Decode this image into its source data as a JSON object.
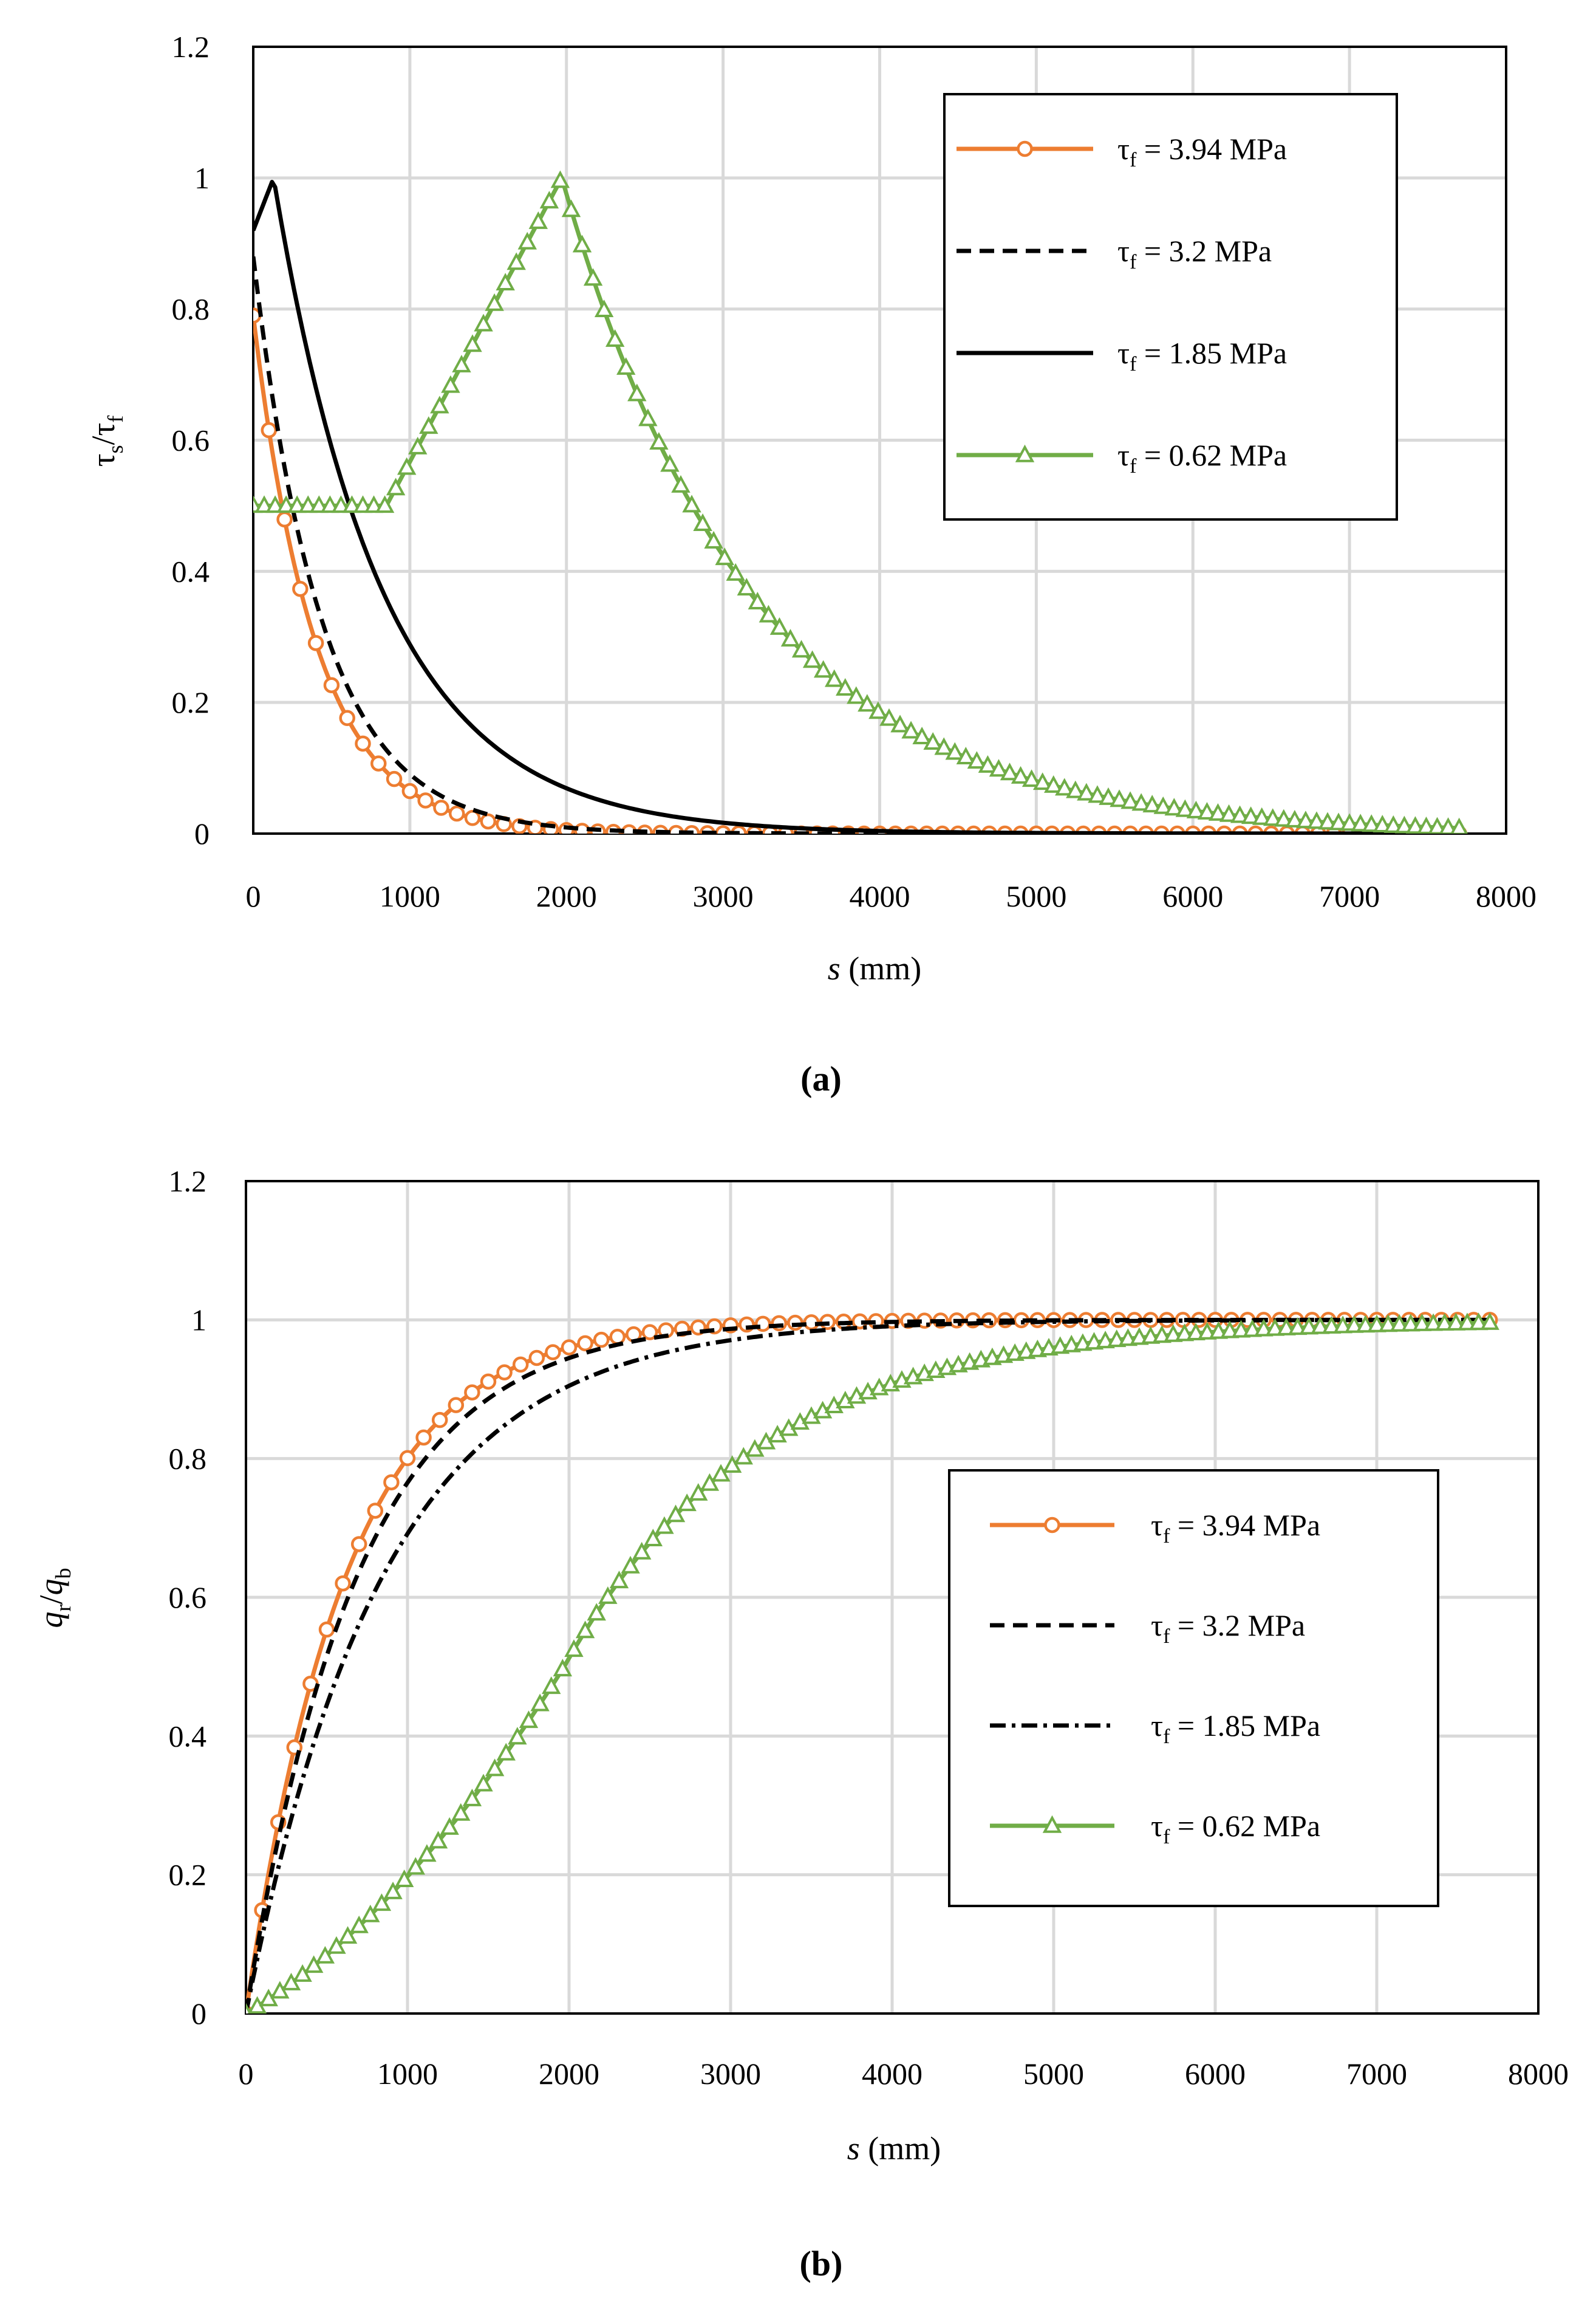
{
  "colors": {
    "orange": "#ed7d31",
    "green": "#70ad47",
    "black": "#000000",
    "grid": "#d9d9d9"
  },
  "chart_data": [
    {
      "type": "line",
      "caption": "(a)",
      "xlabel": {
        "italic": "s",
        "rest": " (mm)"
      },
      "ylabel": {
        "base1": "τ",
        "sub1": "s",
        "sep": "/",
        "base2": "τ",
        "sub2": "f"
      },
      "xlim": [
        0,
        8000
      ],
      "ylim": [
        0,
        1.2
      ],
      "xticks": [
        "0",
        "1000",
        "2000",
        "3000",
        "4000",
        "5000",
        "6000",
        "7000",
        "8000"
      ],
      "yticks": [
        "0",
        "0.2",
        "0.4",
        "0.6",
        "0.8",
        "1",
        "1.2"
      ],
      "grid": true,
      "legend_position": "top-right",
      "series": [
        {
          "name": "3.94 MPa",
          "label_sym": "τ",
          "label_sub": "f",
          "label_rest": " = 3.94 MPa",
          "style": "solid",
          "color": "orange",
          "marker": "circle",
          "model": "decay",
          "x0": 0,
          "y0": 0.79,
          "scale": 400,
          "x_end": 7700
        },
        {
          "name": "3.2 MPa",
          "label_sym": "τ",
          "label_sub": "f",
          "label_rest": " = 3.2 MPa",
          "style": "dashed",
          "color": "black",
          "marker": "none",
          "model": "decay",
          "x0": 0,
          "y0": 0.88,
          "scale": 440,
          "x_end": 7700
        },
        {
          "name": "1.85 MPa",
          "label_sym": "τ",
          "label_sub": "f",
          "label_rest": " = 1.85 MPa",
          "style": "solid",
          "color": "black",
          "marker": "none",
          "model": "peak_decay",
          "start": 0.92,
          "peak_x": 130,
          "scale": 700,
          "x_end": 7700
        },
        {
          "name": "0.62 MPa",
          "label_sym": "τ",
          "label_sub": "f",
          "label_rest": " = 0.62 MPa",
          "style": "solid",
          "color": "green",
          "marker": "triangle",
          "model": "plateau_peak_decay",
          "plateau": 0.5,
          "plateau_end": 850,
          "peak_x": 1970,
          "scale": 1200,
          "x_end": 7700
        }
      ]
    },
    {
      "type": "line",
      "caption": "(b)",
      "xlabel": {
        "italic": "s",
        "rest": " (mm)"
      },
      "ylabel": {
        "base1": "q",
        "sub1": "r",
        "sep": "/",
        "base2": "q",
        "sub2": "b"
      },
      "xlim": [
        0,
        8000
      ],
      "ylim": [
        0,
        1.2
      ],
      "xticks": [
        "0",
        "1000",
        "2000",
        "3000",
        "4000",
        "5000",
        "6000",
        "7000",
        "8000"
      ],
      "yticks": [
        "0",
        "0.2",
        "0.4",
        "0.6",
        "0.8",
        "1",
        "1.2"
      ],
      "grid": true,
      "legend_position": "center-right",
      "series": [
        {
          "name": "3.94 MPa",
          "label_sym": "τ",
          "label_sub": "f",
          "label_rest": " = 3.94 MPa",
          "style": "solid",
          "color": "orange",
          "marker": "circle",
          "model": "rise",
          "scale": 620,
          "x_end": 7700
        },
        {
          "name": "3.2 MPa",
          "label_sym": "τ",
          "label_sub": "f",
          "label_rest": " = 3.2 MPa",
          "style": "dashed",
          "color": "black",
          "marker": "none",
          "model": "rise",
          "scale": 690,
          "x_end": 7700
        },
        {
          "name": "1.85 MPa",
          "label_sym": "τ",
          "label_sub": "f",
          "label_rest": " = 1.85 MPa",
          "style": "dashdot",
          "color": "black",
          "marker": "none",
          "model": "rise",
          "scale": 850,
          "x_end": 7700
        },
        {
          "name": "0.62 MPa",
          "label_sym": "τ",
          "label_sub": "f",
          "label_rest": " = 0.62 MPa",
          "style": "solid",
          "color": "green",
          "marker": "triangle",
          "model": "rise_slow",
          "x_mid": 1970,
          "y_mid": 0.5,
          "scale": 1200,
          "x_end": 7700
        }
      ]
    }
  ]
}
